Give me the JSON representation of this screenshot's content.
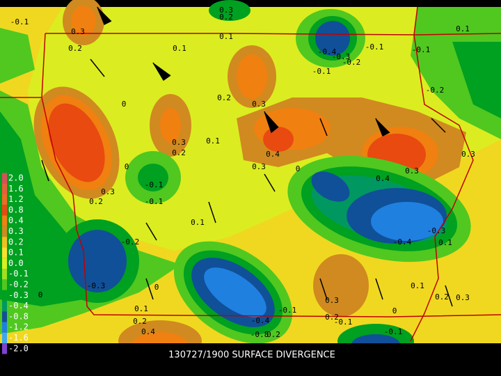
{
  "title": "130727/1900 SURFACE DIVERGENCE",
  "legend": [
    {
      "label": "2.0",
      "color": "#d8505a"
    },
    {
      "label": "1.6",
      "color": "#e8603a"
    },
    {
      "label": "1.2",
      "color": "#f06a28"
    },
    {
      "label": "0.8",
      "color": "#e84a10"
    },
    {
      "label": "0.4",
      "color": "#f08010"
    },
    {
      "label": "0.3",
      "color": "#d08a20"
    },
    {
      "label": "0.2",
      "color": "#f0c020"
    },
    {
      "label": "0.1",
      "color": "#f8e030"
    },
    {
      "label": "0.0",
      "color": "#d8f020"
    },
    {
      "label": "-0.1",
      "color": "#a0e020"
    },
    {
      "label": "-0.2",
      "color": "#50c820"
    },
    {
      "label": "-0.3",
      "color": "#00a020"
    },
    {
      "label": "-0.4",
      "color": "#009860"
    },
    {
      "label": "-0.8",
      "color": "#105098"
    },
    {
      "label": "-1.2",
      "color": "#2080e0"
    },
    {
      "label": "-1.6",
      "color": "#40a8f0"
    },
    {
      "label": "-2.0",
      "color": "#8040d0"
    }
  ],
  "contour_labels": [
    "-0.1",
    "0.3",
    "0.2",
    "0.3",
    "0.2",
    "0.1",
    "0.1",
    "-0.4",
    "-0.3",
    "-0.2",
    "-0.1",
    "-0.1",
    "0.1",
    "-0.1",
    "-0.2",
    "0.2",
    "0.3",
    "0",
    "0.3",
    "0.2",
    "0.1",
    "0.4",
    "0.3",
    "0",
    "0.4",
    "0.3",
    "0.3",
    "-0.1",
    "-0.1",
    "0",
    "0.3",
    "0.2",
    "0.1",
    "-0.2",
    "-0.3",
    "0",
    "0",
    "-0.4",
    "-0.3",
    "0.1",
    "-0.4",
    "-0.1",
    "0.3",
    "0.1",
    "0.2",
    "0.3",
    "-0.1",
    "0.2",
    "0.4",
    "0.2",
    "0.1",
    "-0.8",
    "0.2",
    "-0.1",
    "0"
  ]
}
